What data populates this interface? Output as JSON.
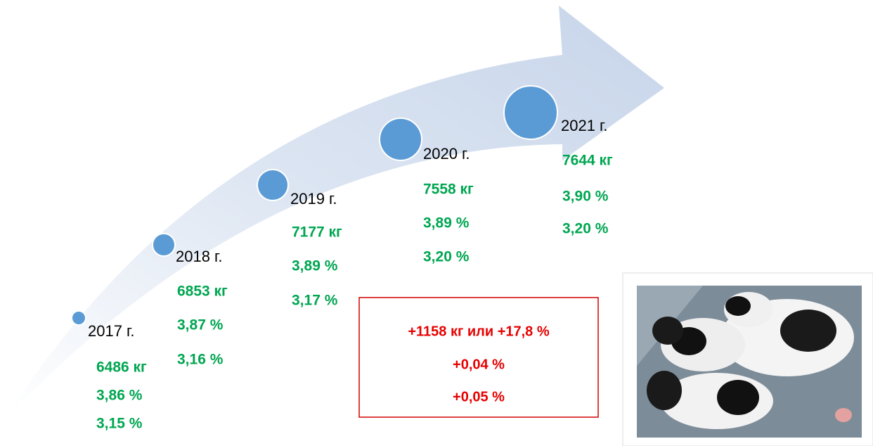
{
  "milestones": [
    {
      "year": "2017 г.",
      "milk": "6486 кг",
      "fat": "3,86 %",
      "protein": "3,15 %"
    },
    {
      "year": "2018 г.",
      "milk": "6853 кг",
      "fat": "3,87 %",
      "protein": "3,16 %"
    },
    {
      "year": "2019 г.",
      "milk": "7177 кг",
      "fat": "3,89 %",
      "protein": "3,17 %"
    },
    {
      "year": "2020 г.",
      "milk": "7558 кг",
      "fat": "3,89 %",
      "protein": "3,20 %"
    },
    {
      "year": "2021 г.",
      "milk": "7644 кг",
      "fat": "3,90 %",
      "protein": "3,20 %"
    }
  ],
  "summary": {
    "lines": [
      "+1158 кг или  +17,8 %",
      "+0,04 %",
      "+0,05 %"
    ]
  }
}
